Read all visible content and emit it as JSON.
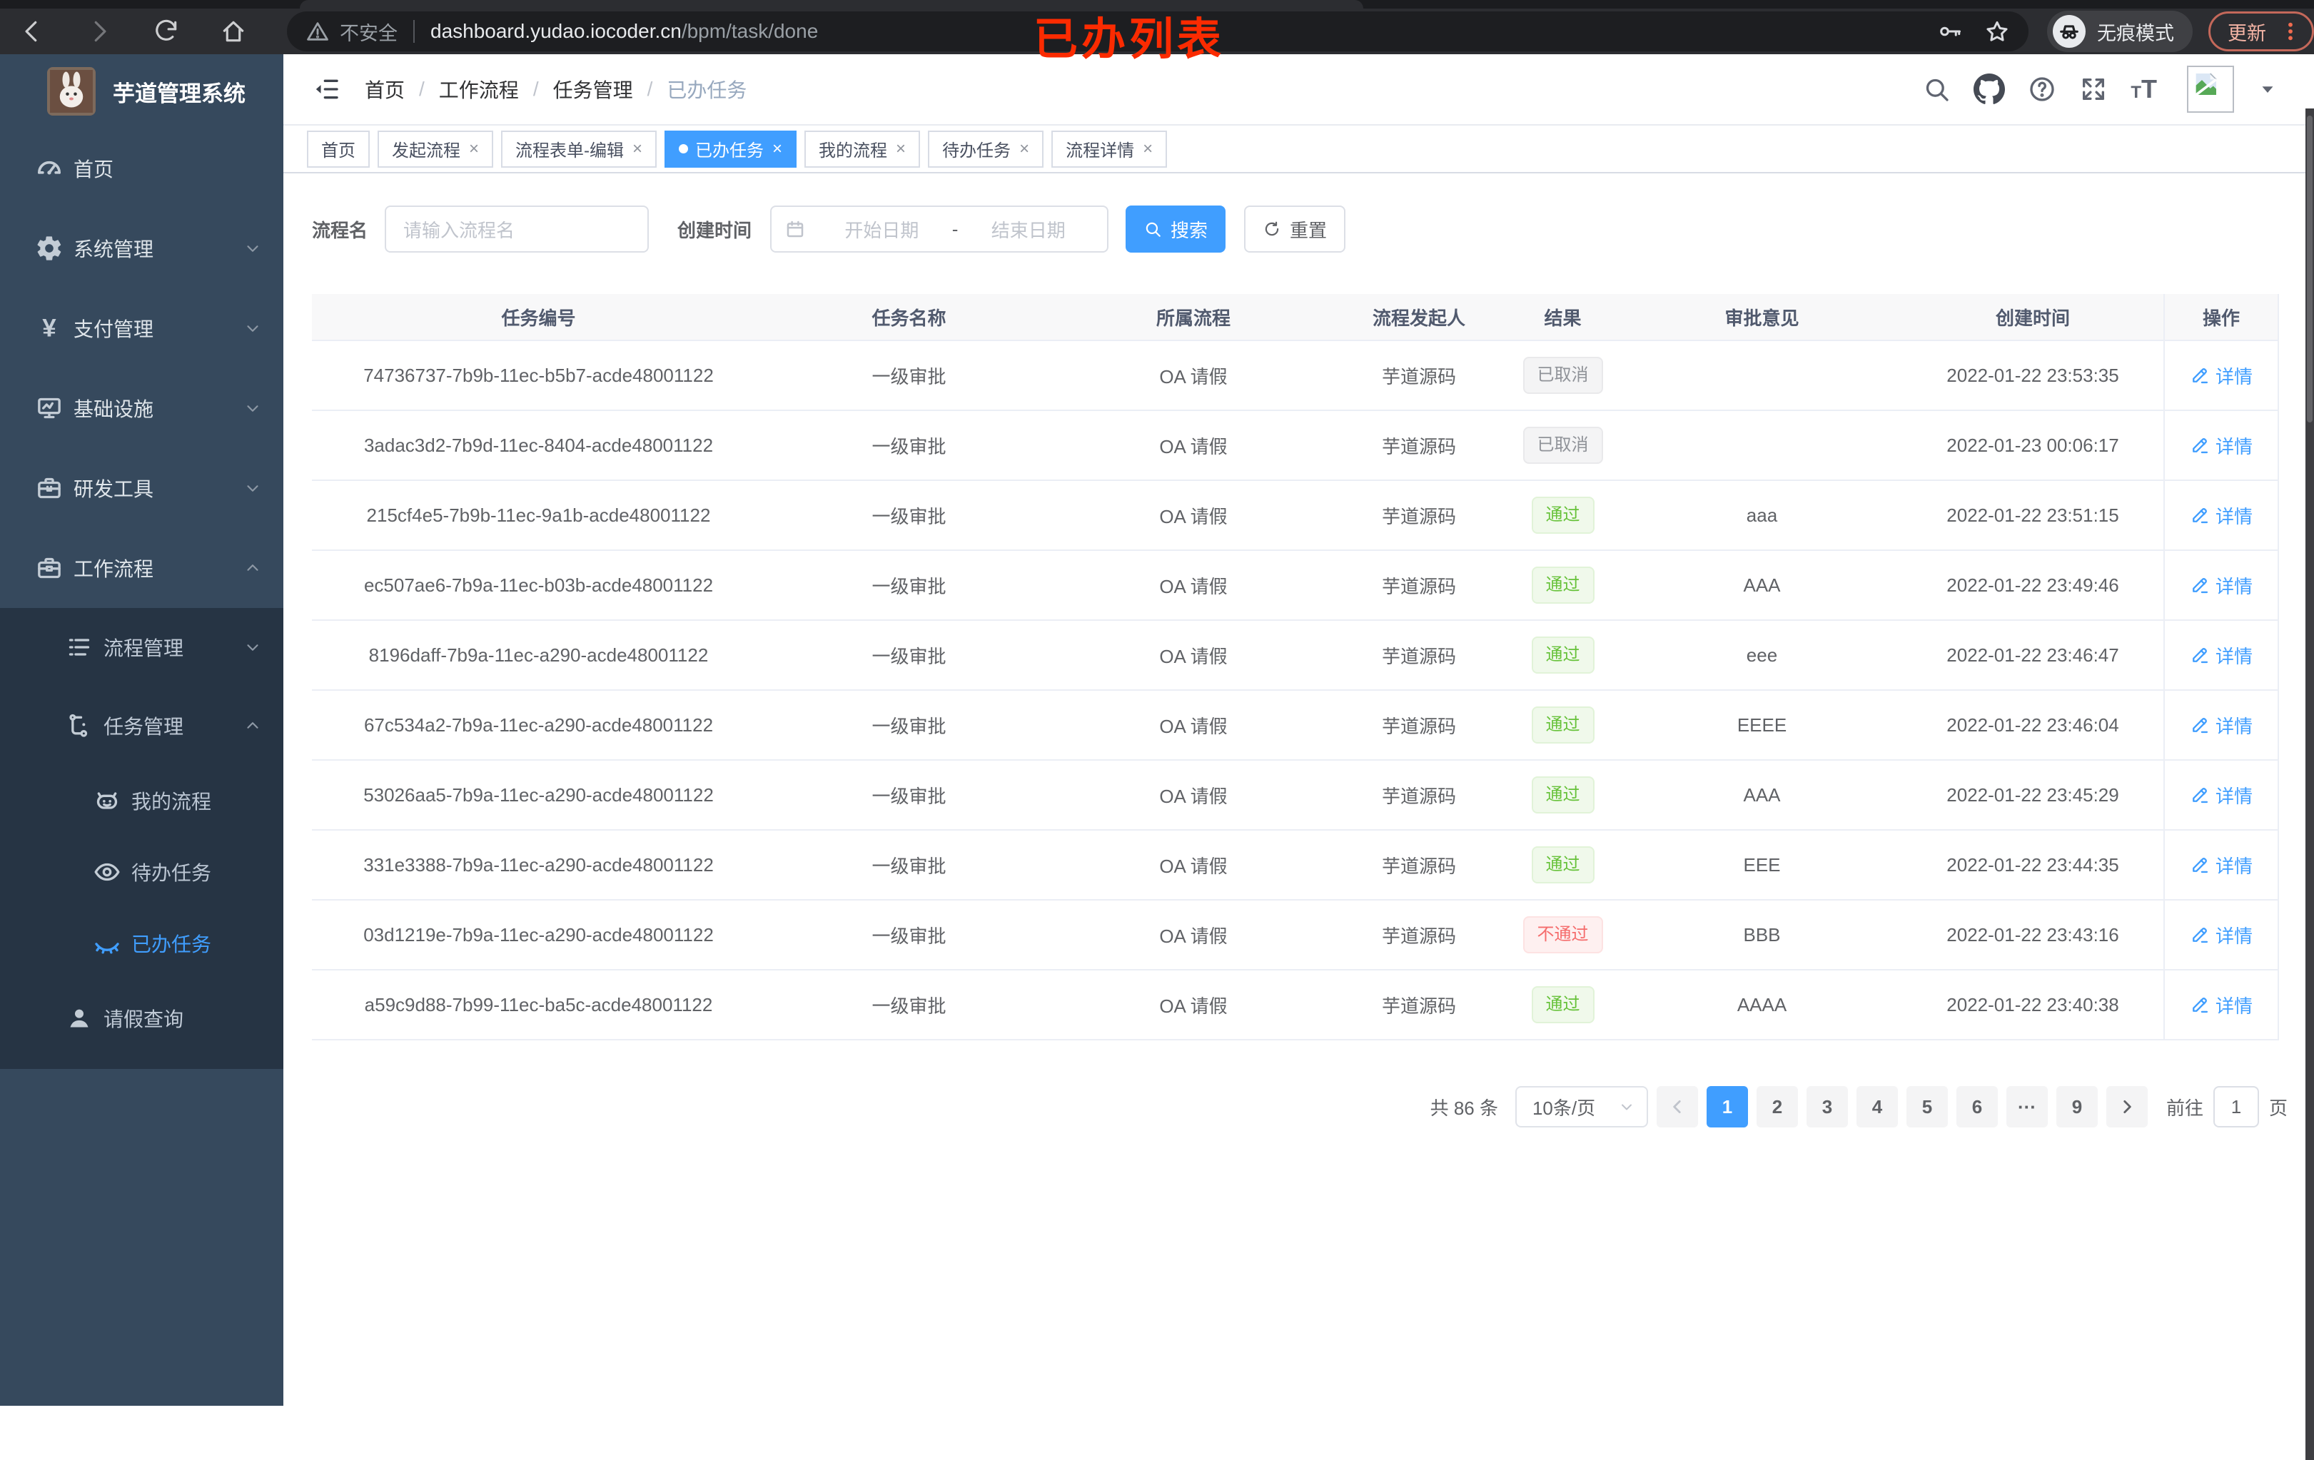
{
  "browser": {
    "security_label": "不安全",
    "url_host": "dashboard.yudao.iocoder.cn",
    "url_path": "/bpm/task/done",
    "incognito_label": "无痕模式",
    "update_label": "更新",
    "annotation": "已办列表"
  },
  "sidebar": {
    "app_title": "芋道管理系统",
    "items": [
      {
        "key": "home",
        "label": "首页",
        "icon": "dashboard-icon",
        "level": 1,
        "expand": null,
        "dark": false,
        "active": false
      },
      {
        "key": "system",
        "label": "系统管理",
        "icon": "gear-icon",
        "level": 1,
        "expand": "down",
        "dark": false,
        "active": false
      },
      {
        "key": "payment",
        "label": "支付管理",
        "icon": "yen-icon",
        "level": 1,
        "expand": "down",
        "dark": false,
        "active": false
      },
      {
        "key": "infrastructure",
        "label": "基础设施",
        "icon": "monitor-icon",
        "level": 1,
        "expand": "down",
        "dark": false,
        "active": false
      },
      {
        "key": "devtools",
        "label": "研发工具",
        "icon": "toolbox-icon",
        "level": 1,
        "expand": "down",
        "dark": false,
        "active": false
      },
      {
        "key": "workflow",
        "label": "工作流程",
        "icon": "briefcase-icon",
        "level": 1,
        "expand": "up",
        "dark": false,
        "active": false
      },
      {
        "key": "process-mgmt",
        "label": "流程管理",
        "icon": "list-icon",
        "level": 2,
        "expand": "down",
        "dark": true,
        "active": false
      },
      {
        "key": "task-mgmt",
        "label": "任务管理",
        "icon": "flow-icon",
        "level": 2,
        "expand": "up",
        "dark": true,
        "active": false
      },
      {
        "key": "my-process",
        "label": "我的流程",
        "icon": "robot-icon",
        "level": 3,
        "expand": null,
        "dark": true,
        "active": false
      },
      {
        "key": "todo-tasks",
        "label": "待办任务",
        "icon": "eye-icon",
        "level": 3,
        "expand": null,
        "dark": true,
        "active": false
      },
      {
        "key": "done-tasks",
        "label": "已办任务",
        "icon": "eye-closed-icon",
        "level": 3,
        "expand": null,
        "dark": true,
        "active": true
      },
      {
        "key": "leave-query",
        "label": "请假查询",
        "icon": "user-icon",
        "level": 2,
        "expand": null,
        "dark": true,
        "active": false
      }
    ]
  },
  "header": {
    "breadcrumbs": [
      "首页",
      "工作流程",
      "任务管理",
      "已办任务"
    ]
  },
  "tabs": [
    {
      "label": "首页",
      "closable": false,
      "active": false
    },
    {
      "label": "发起流程",
      "closable": true,
      "active": false
    },
    {
      "label": "流程表单-编辑",
      "closable": true,
      "active": false
    },
    {
      "label": "已办任务",
      "closable": true,
      "active": true
    },
    {
      "label": "我的流程",
      "closable": true,
      "active": false
    },
    {
      "label": "待办任务",
      "closable": true,
      "active": false
    },
    {
      "label": "流程详情",
      "closable": true,
      "active": false
    }
  ],
  "filters": {
    "name_label": "流程名",
    "name_placeholder": "请输入流程名",
    "date_label": "创建时间",
    "date_start_placeholder": "开始日期",
    "date_separator": "-",
    "date_end_placeholder": "结束日期",
    "search_label": "搜索",
    "reset_label": "重置"
  },
  "table": {
    "columns": [
      "任务编号",
      "任务名称",
      "所属流程",
      "流程发起人",
      "结果",
      "审批意见",
      "创建时间",
      "操作"
    ],
    "action_label": "详情",
    "rows": [
      {
        "id": "74736737-7b9b-11ec-b5b7-acde48001122",
        "name": "一级审批",
        "process": "OA 请假",
        "starter": "芋道源码",
        "result": "已取消",
        "result_type": "info",
        "comment": "",
        "time": "2022-01-22 23:53:35"
      },
      {
        "id": "3adac3d2-7b9d-11ec-8404-acde48001122",
        "name": "一级审批",
        "process": "OA 请假",
        "starter": "芋道源码",
        "result": "已取消",
        "result_type": "info",
        "comment": "",
        "time": "2022-01-23 00:06:17"
      },
      {
        "id": "215cf4e5-7b9b-11ec-9a1b-acde48001122",
        "name": "一级审批",
        "process": "OA 请假",
        "starter": "芋道源码",
        "result": "通过",
        "result_type": "success",
        "comment": "aaa",
        "time": "2022-01-22 23:51:15"
      },
      {
        "id": "ec507ae6-7b9a-11ec-b03b-acde48001122",
        "name": "一级审批",
        "process": "OA 请假",
        "starter": "芋道源码",
        "result": "通过",
        "result_type": "success",
        "comment": "AAA",
        "time": "2022-01-22 23:49:46"
      },
      {
        "id": "8196daff-7b9a-11ec-a290-acde48001122",
        "name": "一级审批",
        "process": "OA 请假",
        "starter": "芋道源码",
        "result": "通过",
        "result_type": "success",
        "comment": "eee",
        "time": "2022-01-22 23:46:47"
      },
      {
        "id": "67c534a2-7b9a-11ec-a290-acde48001122",
        "name": "一级审批",
        "process": "OA 请假",
        "starter": "芋道源码",
        "result": "通过",
        "result_type": "success",
        "comment": "EEEE",
        "time": "2022-01-22 23:46:04"
      },
      {
        "id": "53026aa5-7b9a-11ec-a290-acde48001122",
        "name": "一级审批",
        "process": "OA 请假",
        "starter": "芋道源码",
        "result": "通过",
        "result_type": "success",
        "comment": "AAA",
        "time": "2022-01-22 23:45:29"
      },
      {
        "id": "331e3388-7b9a-11ec-a290-acde48001122",
        "name": "一级审批",
        "process": "OA 请假",
        "starter": "芋道源码",
        "result": "通过",
        "result_type": "success",
        "comment": "EEE",
        "time": "2022-01-22 23:44:35"
      },
      {
        "id": "03d1219e-7b9a-11ec-a290-acde48001122",
        "name": "一级审批",
        "process": "OA 请假",
        "starter": "芋道源码",
        "result": "不通过",
        "result_type": "danger",
        "comment": "BBB",
        "time": "2022-01-22 23:43:16"
      },
      {
        "id": "a59c9d88-7b99-11ec-ba5c-acde48001122",
        "name": "一级审批",
        "process": "OA 请假",
        "starter": "芋道源码",
        "result": "通过",
        "result_type": "success",
        "comment": "AAAA",
        "time": "2022-01-22 23:40:38"
      }
    ]
  },
  "pagination": {
    "total_label": "共 86 条",
    "page_size_label": "10条/页",
    "pages": [
      "1",
      "2",
      "3",
      "4",
      "5",
      "6",
      "···",
      "9"
    ],
    "active_page": "1",
    "goto_label": "前往",
    "goto_value": "1",
    "goto_suffix": "页"
  },
  "colors": {
    "accent": "#409eff",
    "success": "#67c23a",
    "danger": "#f56c6c",
    "info": "#909399",
    "annotation_red": "#fb2b01",
    "sidebar_bg": "#36495d",
    "sidebar_submenu_bg": "#263444"
  }
}
